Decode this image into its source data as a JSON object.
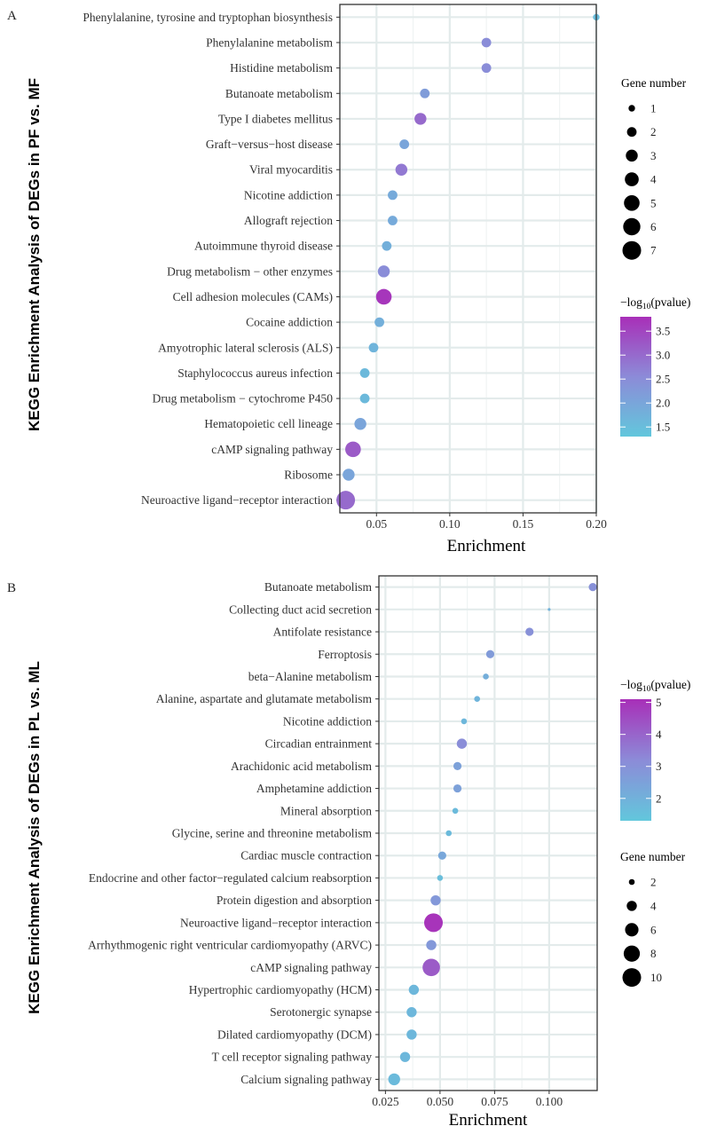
{
  "chart_data": [
    {
      "panel_label": "A",
      "type": "scatter",
      "ylabel": "KEGG Enrichment Analysis of DEGs in PF vs. MF",
      "xlabel": "Enrichment",
      "xlim": [
        0.025,
        0.2
      ],
      "xticks": [
        0.05,
        0.1,
        0.15,
        0.2
      ],
      "xtick_labels": [
        "0.05",
        "0.10",
        "0.15",
        "0.20"
      ],
      "grid": true,
      "size_legend": {
        "title": "Gene number",
        "values": [
          1,
          2,
          3,
          4,
          5,
          6,
          7
        ],
        "labels": [
          "1",
          "2",
          "3",
          "4",
          "5",
          "6",
          "7"
        ]
      },
      "color_legend": {
        "title_prefix": "−log",
        "title_sub": "10",
        "title_suffix": "(pvalue)",
        "min": 1.3,
        "max": 3.8,
        "ticks": [
          1.5,
          2.0,
          2.5,
          3.0,
          3.5
        ],
        "tick_labels": [
          "1.5",
          "2.0",
          "2.5",
          "3.0",
          "3.5"
        ],
        "low_color": "#62c7dc",
        "mid_color": "#8c8bd8",
        "high_color": "#a82fb8"
      },
      "points": [
        {
          "term": "Phenylalanine, tyrosine and tryptophan biosynthesis",
          "enrichment": 0.2,
          "gene_number": 1,
          "neg_log10_p": 1.5
        },
        {
          "term": "Phenylalanine metabolism",
          "enrichment": 0.125,
          "gene_number": 2,
          "neg_log10_p": 2.5
        },
        {
          "term": "Histidine metabolism",
          "enrichment": 0.125,
          "gene_number": 2,
          "neg_log10_p": 2.5
        },
        {
          "term": "Butanoate metabolism",
          "enrichment": 0.083,
          "gene_number": 2,
          "neg_log10_p": 2.2
        },
        {
          "term": "Type I diabetes mellitus",
          "enrichment": 0.08,
          "gene_number": 3,
          "neg_log10_p": 3.0
        },
        {
          "term": "Graft−versus−host disease",
          "enrichment": 0.069,
          "gene_number": 2,
          "neg_log10_p": 2.0
        },
        {
          "term": "Viral myocarditis",
          "enrichment": 0.067,
          "gene_number": 3,
          "neg_log10_p": 2.8
        },
        {
          "term": "Nicotine addiction",
          "enrichment": 0.061,
          "gene_number": 2,
          "neg_log10_p": 1.9
        },
        {
          "term": "Allograft rejection",
          "enrichment": 0.061,
          "gene_number": 2,
          "neg_log10_p": 1.9
        },
        {
          "term": "Autoimmune thyroid disease",
          "enrichment": 0.057,
          "gene_number": 2,
          "neg_log10_p": 1.8
        },
        {
          "term": "Drug metabolism − other enzymes",
          "enrichment": 0.055,
          "gene_number": 3,
          "neg_log10_p": 2.5
        },
        {
          "term": "Cell adhesion molecules (CAMs)",
          "enrichment": 0.055,
          "gene_number": 5,
          "neg_log10_p": 3.7
        },
        {
          "term": "Cocaine addiction",
          "enrichment": 0.052,
          "gene_number": 2,
          "neg_log10_p": 1.8
        },
        {
          "term": "Amyotrophic lateral sclerosis (ALS)",
          "enrichment": 0.048,
          "gene_number": 2,
          "neg_log10_p": 1.7
        },
        {
          "term": "Staphylococcus aureus infection",
          "enrichment": 0.042,
          "gene_number": 2,
          "neg_log10_p": 1.6
        },
        {
          "term": "Drug metabolism − cytochrome P450",
          "enrichment": 0.042,
          "gene_number": 2,
          "neg_log10_p": 1.6
        },
        {
          "term": "Hematopoietic cell lineage",
          "enrichment": 0.039,
          "gene_number": 3,
          "neg_log10_p": 2.0
        },
        {
          "term": "cAMP signaling pathway",
          "enrichment": 0.034,
          "gene_number": 5,
          "neg_log10_p": 3.2
        },
        {
          "term": "Ribosome",
          "enrichment": 0.031,
          "gene_number": 3,
          "neg_log10_p": 2.0
        },
        {
          "term": "Neuroactive ligand−receptor interaction",
          "enrichment": 0.029,
          "gene_number": 7,
          "neg_log10_p": 3.0
        }
      ]
    },
    {
      "panel_label": "B",
      "type": "scatter",
      "ylabel": "KEGG Enrichment Analysis of DEGs in PL vs. ML",
      "xlabel": "Enrichment",
      "xlim": [
        0.022,
        0.122
      ],
      "xticks": [
        0.025,
        0.05,
        0.075,
        0.1
      ],
      "xtick_labels": [
        "0.025",
        "0.050",
        "0.075",
        "0.100"
      ],
      "grid": true,
      "size_legend": {
        "title": "Gene number",
        "values": [
          2,
          4,
          6,
          8,
          10
        ],
        "labels": [
          "2",
          "4",
          "6",
          "8",
          "10"
        ]
      },
      "color_legend": {
        "title_prefix": "−log",
        "title_sub": "10",
        "title_suffix": "(pvalue)",
        "min": 1.3,
        "max": 5.1,
        "ticks": [
          2,
          3,
          4,
          5
        ],
        "tick_labels": [
          "2",
          "3",
          "4",
          "5"
        ],
        "low_color": "#62c7dc",
        "mid_color": "#8c8bd8",
        "high_color": "#a82fb8"
      },
      "points": [
        {
          "term": "Butanoate metabolism",
          "enrichment": 0.12,
          "gene_number": 3,
          "neg_log10_p": 3.0
        },
        {
          "term": "Collecting duct acid secretion",
          "enrichment": 0.1,
          "gene_number": 1,
          "neg_log10_p": 2.0
        },
        {
          "term": "Antifolate resistance",
          "enrichment": 0.091,
          "gene_number": 3,
          "neg_log10_p": 3.0
        },
        {
          "term": "Ferroptosis",
          "enrichment": 0.073,
          "gene_number": 3,
          "neg_log10_p": 2.7
        },
        {
          "term": "beta−Alanine metabolism",
          "enrichment": 0.071,
          "gene_number": 2,
          "neg_log10_p": 2.1
        },
        {
          "term": "Alanine, aspartate and glutamate metabolism",
          "enrichment": 0.067,
          "gene_number": 2,
          "neg_log10_p": 1.9
        },
        {
          "term": "Nicotine addiction",
          "enrichment": 0.061,
          "gene_number": 2,
          "neg_log10_p": 1.8
        },
        {
          "term": "Circadian entrainment",
          "enrichment": 0.06,
          "gene_number": 4,
          "neg_log10_p": 3.1
        },
        {
          "term": "Arachidonic acid metabolism",
          "enrichment": 0.058,
          "gene_number": 3,
          "neg_log10_p": 2.5
        },
        {
          "term": "Amphetamine addiction",
          "enrichment": 0.058,
          "gene_number": 3,
          "neg_log10_p": 2.5
        },
        {
          "term": "Mineral absorption",
          "enrichment": 0.057,
          "gene_number": 2,
          "neg_log10_p": 1.7
        },
        {
          "term": "Glycine, serine and threonine metabolism",
          "enrichment": 0.054,
          "gene_number": 2,
          "neg_log10_p": 1.7
        },
        {
          "term": "Cardiac muscle contraction",
          "enrichment": 0.051,
          "gene_number": 3,
          "neg_log10_p": 2.3
        },
        {
          "term": "Endocrine and other factor−regulated calcium reabsorption",
          "enrichment": 0.05,
          "gene_number": 2,
          "neg_log10_p": 1.6
        },
        {
          "term": "Protein digestion and absorption",
          "enrichment": 0.048,
          "gene_number": 4,
          "neg_log10_p": 2.8
        },
        {
          "term": "Neuroactive ligand−receptor interaction",
          "enrichment": 0.047,
          "gene_number": 10,
          "neg_log10_p": 5.0
        },
        {
          "term": "Arrhythmogenic right ventricular cardiomyopathy (ARVC)",
          "enrichment": 0.046,
          "gene_number": 4,
          "neg_log10_p": 2.8
        },
        {
          "term": "cAMP signaling pathway",
          "enrichment": 0.046,
          "gene_number": 9,
          "neg_log10_p": 4.2
        },
        {
          "term": "Hypertrophic cardiomyopathy (HCM)",
          "enrichment": 0.038,
          "gene_number": 4,
          "neg_log10_p": 1.8
        },
        {
          "term": "Serotonergic synapse",
          "enrichment": 0.037,
          "gene_number": 4,
          "neg_log10_p": 1.8
        },
        {
          "term": "Dilated cardiomyopathy (DCM)",
          "enrichment": 0.037,
          "gene_number": 4,
          "neg_log10_p": 1.8
        },
        {
          "term": "T cell receptor signaling pathway",
          "enrichment": 0.034,
          "gene_number": 4,
          "neg_log10_p": 1.8
        },
        {
          "term": "Calcium signaling pathway",
          "enrichment": 0.029,
          "gene_number": 5,
          "neg_log10_p": 1.7
        }
      ]
    }
  ]
}
